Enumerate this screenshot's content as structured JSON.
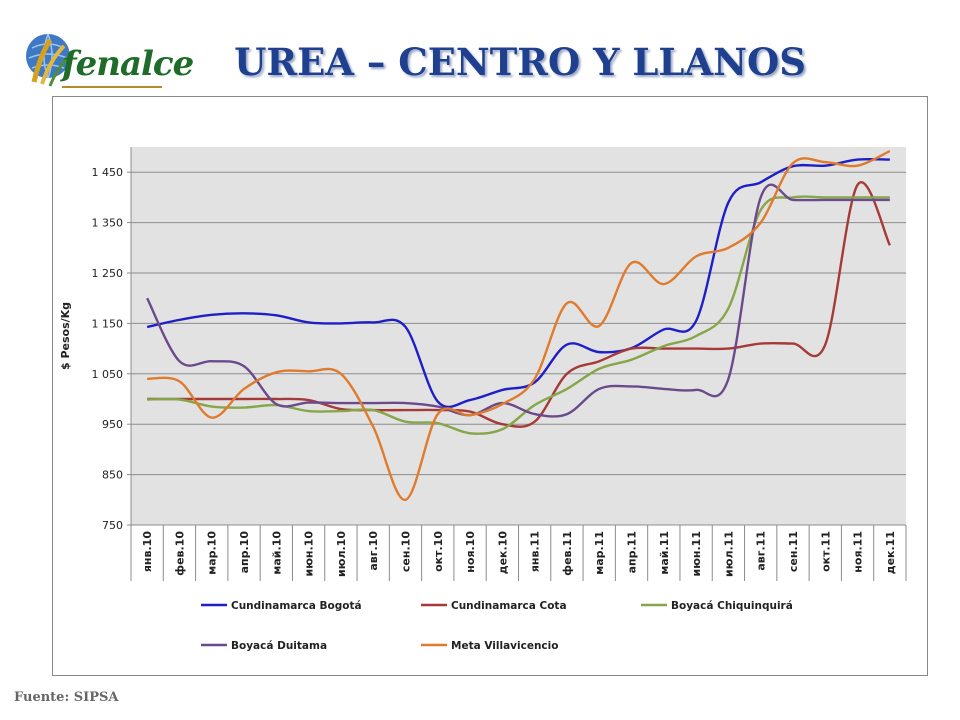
{
  "header": {
    "title": "UREA – CENTRO Y LLANOS",
    "logo_text": "fenalce"
  },
  "footer": {
    "source": "Fuente: SIPSA"
  },
  "chart_data": {
    "type": "line",
    "title": "",
    "xlabel": "",
    "ylabel": "$ Pesos/Kg",
    "ylim": [
      750,
      1500
    ],
    "yticks": [
      750,
      850,
      950,
      1050,
      1150,
      1250,
      1350,
      1450
    ],
    "ytick_labels": [
      "750",
      "850",
      "950",
      "1 050",
      "1 150",
      "1 250",
      "1 350",
      "1 450"
    ],
    "grid": true,
    "legend_position": "bottom",
    "categories": [
      "янв.10",
      "фев.10",
      "мар.10",
      "апр.10",
      "май.10",
      "июн.10",
      "июл.10",
      "авг.10",
      "сен.10",
      "окт.10",
      "ноя.10",
      "дек.10",
      "янв.11",
      "фев.11",
      "мар.11",
      "апр.11",
      "май.11",
      "июн.11",
      "июл.11",
      "авг.11",
      "сен.11",
      "окт.11",
      "ноя.11",
      "дек.11"
    ],
    "series": [
      {
        "name": "Cundinamarca Bogotá",
        "color": "#1f1fc8",
        "values": [
          1143,
          1157,
          1167,
          1170,
          1166,
          1152,
          1150,
          1152,
          1143,
          995,
          998,
          1018,
          1033,
          1108,
          1093,
          1101,
          1138,
          1155,
          1390,
          1430,
          1462,
          1463,
          1475,
          1475
        ]
      },
      {
        "name": "Cundinamarca Cota",
        "color": "#a63a38",
        "values": [
          1000,
          1000,
          1000,
          1000,
          1000,
          998,
          980,
          978,
          978,
          978,
          975,
          950,
          955,
          1050,
          1075,
          1100,
          1100,
          1100,
          1100,
          1110,
          1110,
          1108,
          1425,
          1305
        ]
      },
      {
        "name": "Boyacá Chiquinquirá",
        "color": "#86a64a",
        "values": [
          999,
          999,
          985,
          983,
          988,
          976,
          976,
          978,
          955,
          952,
          932,
          940,
          988,
          1020,
          1060,
          1078,
          1105,
          1125,
          1180,
          1375,
          1400,
          1400,
          1400,
          1400
        ]
      },
      {
        "name": "Boyacá Duitama",
        "color": "#6b4a8c",
        "values": [
          1200,
          1075,
          1075,
          1065,
          990,
          993,
          992,
          992,
          992,
          985,
          968,
          992,
          970,
          970,
          1020,
          1025,
          1020,
          1018,
          1040,
          1400,
          1395,
          1395,
          1395,
          1395
        ]
      },
      {
        "name": "Meta Villavicencio",
        "color": "#e07b2e",
        "values": [
          1040,
          1035,
          963,
          1020,
          1053,
          1055,
          1050,
          945,
          800,
          970,
          968,
          990,
          1040,
          1190,
          1145,
          1270,
          1228,
          1283,
          1300,
          1350,
          1468,
          1470,
          1463,
          1492
        ]
      }
    ]
  }
}
